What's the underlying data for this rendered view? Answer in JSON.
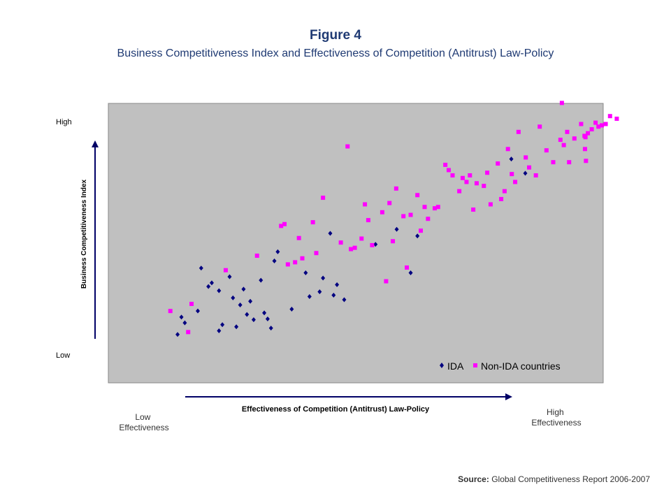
{
  "title": "Figure 4",
  "subtitle": "Business Competitiveness Index and Effectiveness of Competition (Antitrust) Law-Policy",
  "source": {
    "label": "Source:",
    "text": "Global Competitiveness Report 2006-2007"
  },
  "colors": {
    "plot_bg": "#c0c0c0",
    "ida": "#000080",
    "non_ida": "#ff00ff",
    "arrow": "#000066"
  },
  "chart_data": {
    "type": "scatter",
    "title": "",
    "xlabel": "Effectiveness of Competition (Antitrust) Law-Policy",
    "ylabel": "Business Competitiveness Index",
    "x_tick_labels": {
      "low": "Low\nEffectiveness",
      "high": "High\nEffectiveness"
    },
    "y_tick_labels": {
      "low": "Low",
      "high": "High"
    },
    "xlim": [
      0,
      100
    ],
    "ylim": [
      0,
      100
    ],
    "grid": false,
    "legend": "bottom-right",
    "series": [
      {
        "name": "IDA",
        "marker": "diamond",
        "color": "#000080",
        "points": [
          [
            12.2,
            13.6
          ],
          [
            13.0,
            20.2
          ],
          [
            13.7,
            18.0
          ],
          [
            16.4,
            22.5
          ],
          [
            17.1,
            38.8
          ],
          [
            18.6,
            31.8
          ],
          [
            19.3,
            33.2
          ],
          [
            20.8,
            30.2
          ],
          [
            20.8,
            15.0
          ],
          [
            21.5,
            17.3
          ],
          [
            23.0,
            35.5
          ],
          [
            23.7,
            27.5
          ],
          [
            24.4,
            16.5
          ],
          [
            25.2,
            24.8
          ],
          [
            25.9,
            30.8
          ],
          [
            26.6,
            21.2
          ],
          [
            27.3,
            26.2
          ],
          [
            28.0,
            19.2
          ],
          [
            29.5,
            34.2
          ],
          [
            30.2,
            21.8
          ],
          [
            30.9,
            19.5
          ],
          [
            31.6,
            16.0
          ],
          [
            32.3,
            41.5
          ],
          [
            33.0,
            45.0
          ],
          [
            35.9,
            23.2
          ],
          [
            38.8,
            37.0
          ],
          [
            39.6,
            28.0
          ],
          [
            41.7,
            29.8
          ],
          [
            42.4,
            35.0
          ],
          [
            43.9,
            52.0
          ],
          [
            44.6,
            28.5
          ],
          [
            45.3,
            32.5
          ],
          [
            46.8,
            26.8
          ],
          [
            53.3,
            47.8
          ],
          [
            57.7,
            53.5
          ],
          [
            60.6,
            37.0
          ],
          [
            62.0,
            51.0
          ],
          [
            81.5,
            80.2
          ],
          [
            84.4,
            74.8
          ]
        ]
      },
      {
        "name": "Non-IDA countries",
        "marker": "square",
        "color": "#ff00ff",
        "points": [
          [
            10.7,
            22.5
          ],
          [
            14.4,
            14.5
          ],
          [
            15.1,
            25.2
          ],
          [
            22.2,
            38.0
          ],
          [
            28.7,
            43.5
          ],
          [
            33.7,
            54.8
          ],
          [
            34.4,
            55.5
          ],
          [
            35.1,
            40.2
          ],
          [
            36.6,
            41.0
          ],
          [
            37.4,
            50.2
          ],
          [
            38.1,
            42.5
          ],
          [
            40.3,
            56.2
          ],
          [
            41.0,
            44.5
          ],
          [
            42.4,
            65.5
          ],
          [
            46.1,
            48.5
          ],
          [
            47.5,
            85.0
          ],
          [
            48.2,
            46.0
          ],
          [
            49.0,
            46.5
          ],
          [
            50.4,
            50.0
          ],
          [
            51.1,
            63.0
          ],
          [
            51.8,
            57.0
          ],
          [
            52.6,
            47.5
          ],
          [
            54.7,
            60.0
          ],
          [
            55.5,
            33.8
          ],
          [
            56.2,
            63.5
          ],
          [
            56.9,
            49.0
          ],
          [
            57.6,
            69.0
          ],
          [
            59.1,
            58.5
          ],
          [
            59.8,
            39.0
          ],
          [
            60.6,
            59.0
          ],
          [
            62.0,
            66.5
          ],
          [
            62.7,
            53.0
          ],
          [
            63.5,
            62.0
          ],
          [
            64.2,
            57.5
          ],
          [
            65.6,
            61.5
          ],
          [
            66.3,
            62.0
          ],
          [
            67.8,
            78.0
          ],
          [
            68.5,
            76.0
          ],
          [
            69.3,
            74.0
          ],
          [
            70.7,
            68.0
          ],
          [
            71.4,
            73.0
          ],
          [
            72.2,
            71.5
          ],
          [
            72.9,
            74.0
          ],
          [
            73.6,
            61.0
          ],
          [
            74.3,
            71.0
          ],
          [
            75.8,
            70.0
          ],
          [
            76.5,
            75.0
          ],
          [
            77.2,
            63.0
          ],
          [
            78.7,
            78.5
          ],
          [
            79.4,
            65.0
          ],
          [
            80.1,
            68.0
          ],
          [
            80.8,
            84.0
          ],
          [
            81.6,
            74.5
          ],
          [
            82.3,
            71.5
          ],
          [
            83.0,
            90.5
          ],
          [
            84.5,
            80.8
          ],
          [
            85.2,
            77.0
          ],
          [
            86.6,
            74.0
          ],
          [
            87.4,
            92.5
          ],
          [
            88.8,
            83.5
          ],
          [
            90.2,
            79.0
          ],
          [
            91.7,
            87.5
          ],
          [
            92.4,
            85.5
          ],
          [
            93.1,
            90.5
          ],
          [
            94.6,
            88.0
          ],
          [
            96.0,
            93.5
          ],
          [
            96.7,
            89.0
          ],
          [
            97.4,
            90.0
          ],
          [
            98.2,
            91.5
          ],
          [
            99.6,
            92.5
          ],
          [
            100.3,
            93.0
          ],
          [
            101.1,
            93.5
          ],
          [
            96.8,
            84.0
          ],
          [
            97.0,
            79.5
          ],
          [
            92.0,
            101.5
          ],
          [
            96.9,
            88.5
          ],
          [
            93.5,
            79.0
          ],
          [
            102.0,
            96.5
          ],
          [
            103.4,
            95.5
          ],
          [
            99.0,
            94.0
          ]
        ]
      }
    ]
  }
}
